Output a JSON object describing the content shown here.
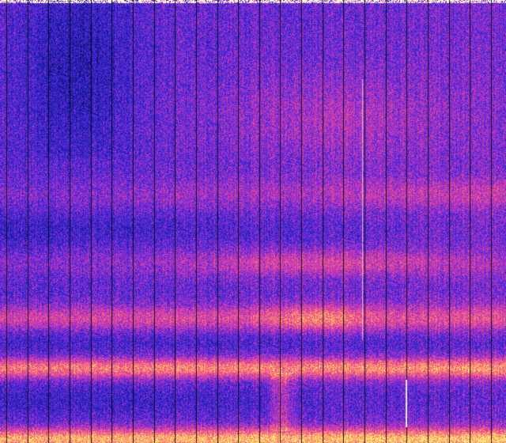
{
  "image": {
    "kind": "spectrogram",
    "colormap": [
      "#000000",
      "#1a1aa0",
      "#3a2ae0",
      "#b030c8",
      "#f04a90",
      "#ff9a60",
      "#ffff80"
    ],
    "separator_color": "#000000",
    "highlight_color": "#ffffff"
  }
}
